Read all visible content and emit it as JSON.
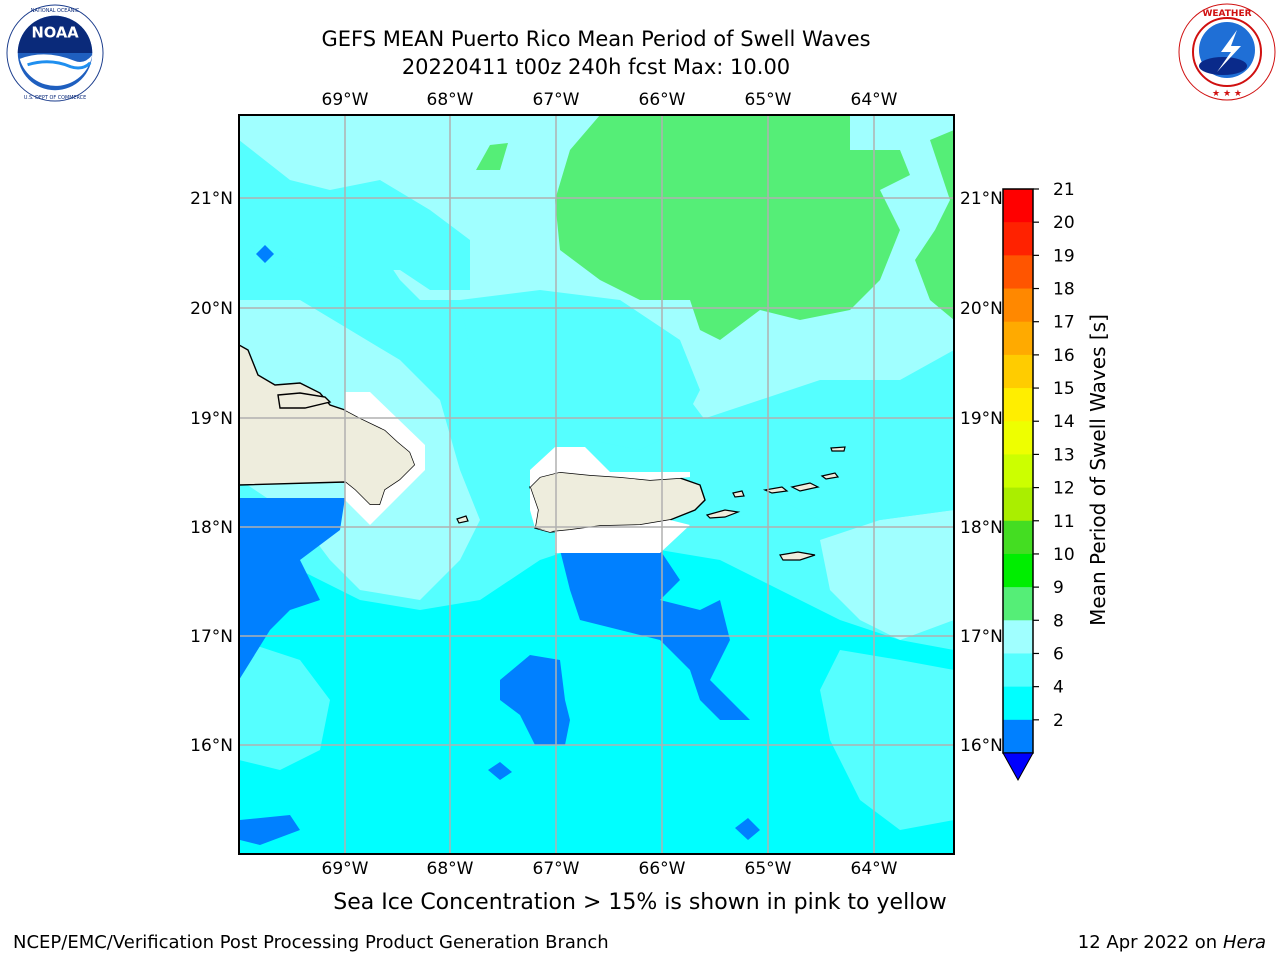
{
  "title": {
    "line1": "GEFS MEAN Puerto Rico Mean Period of Swell Waves",
    "line2": "20220411 t00z 240h fcst   Max: 10.00"
  },
  "logos": {
    "left": {
      "icon": "noaa-logo",
      "text": "NOAA",
      "ring_text": "NATIONAL OCEANIC AND ATMOSPHERIC ADMINISTRATION · U.S. DEPARTMENT OF COMMERCE"
    },
    "right": {
      "icon": "nws-logo",
      "ring_text": "NATIONAL WEATHER SERVICE"
    }
  },
  "map": {
    "lon_labels": [
      "69°W",
      "68°W",
      "67°W",
      "66°W",
      "65°W",
      "64°W"
    ],
    "lat_labels": [
      "21°N",
      "20°N",
      "19°N",
      "18°N",
      "17°N",
      "16°N"
    ],
    "colors": {
      "land": "#eeeddd",
      "range_2_4": "#0080ff",
      "range_4_6": "#00ffff",
      "range_6_8": "#55ffff",
      "range_8_9": "#a0ffff",
      "range_9_10": "#55ee77",
      "grid": "#b0b0b0"
    }
  },
  "colorbar": {
    "label": "Mean Period of Swell Waves [s]",
    "ticks": [
      "21",
      "20",
      "19",
      "18",
      "17",
      "16",
      "15",
      "14",
      "13",
      "12",
      "11",
      "10",
      "9",
      "8",
      "6",
      "4",
      "2"
    ],
    "colors": [
      "#ff0000",
      "#ff2200",
      "#ff5500",
      "#ff8800",
      "#ffaa00",
      "#ffcc00",
      "#ffee00",
      "#eeff00",
      "#ccff00",
      "#aaee00",
      "#44dd22",
      "#00ee00",
      "#55ee77",
      "#a0ffff",
      "#55ffff",
      "#00ffff",
      "#0080ff"
    ],
    "extend_color": "#0000ff"
  },
  "note": "Sea Ice Concentration > 15% is shown in pink to yellow",
  "footer": {
    "left": "NCEP/EMC/Verification Post Processing Product Generation Branch",
    "date": "12 Apr 2022 on ",
    "machine": "Hera"
  }
}
